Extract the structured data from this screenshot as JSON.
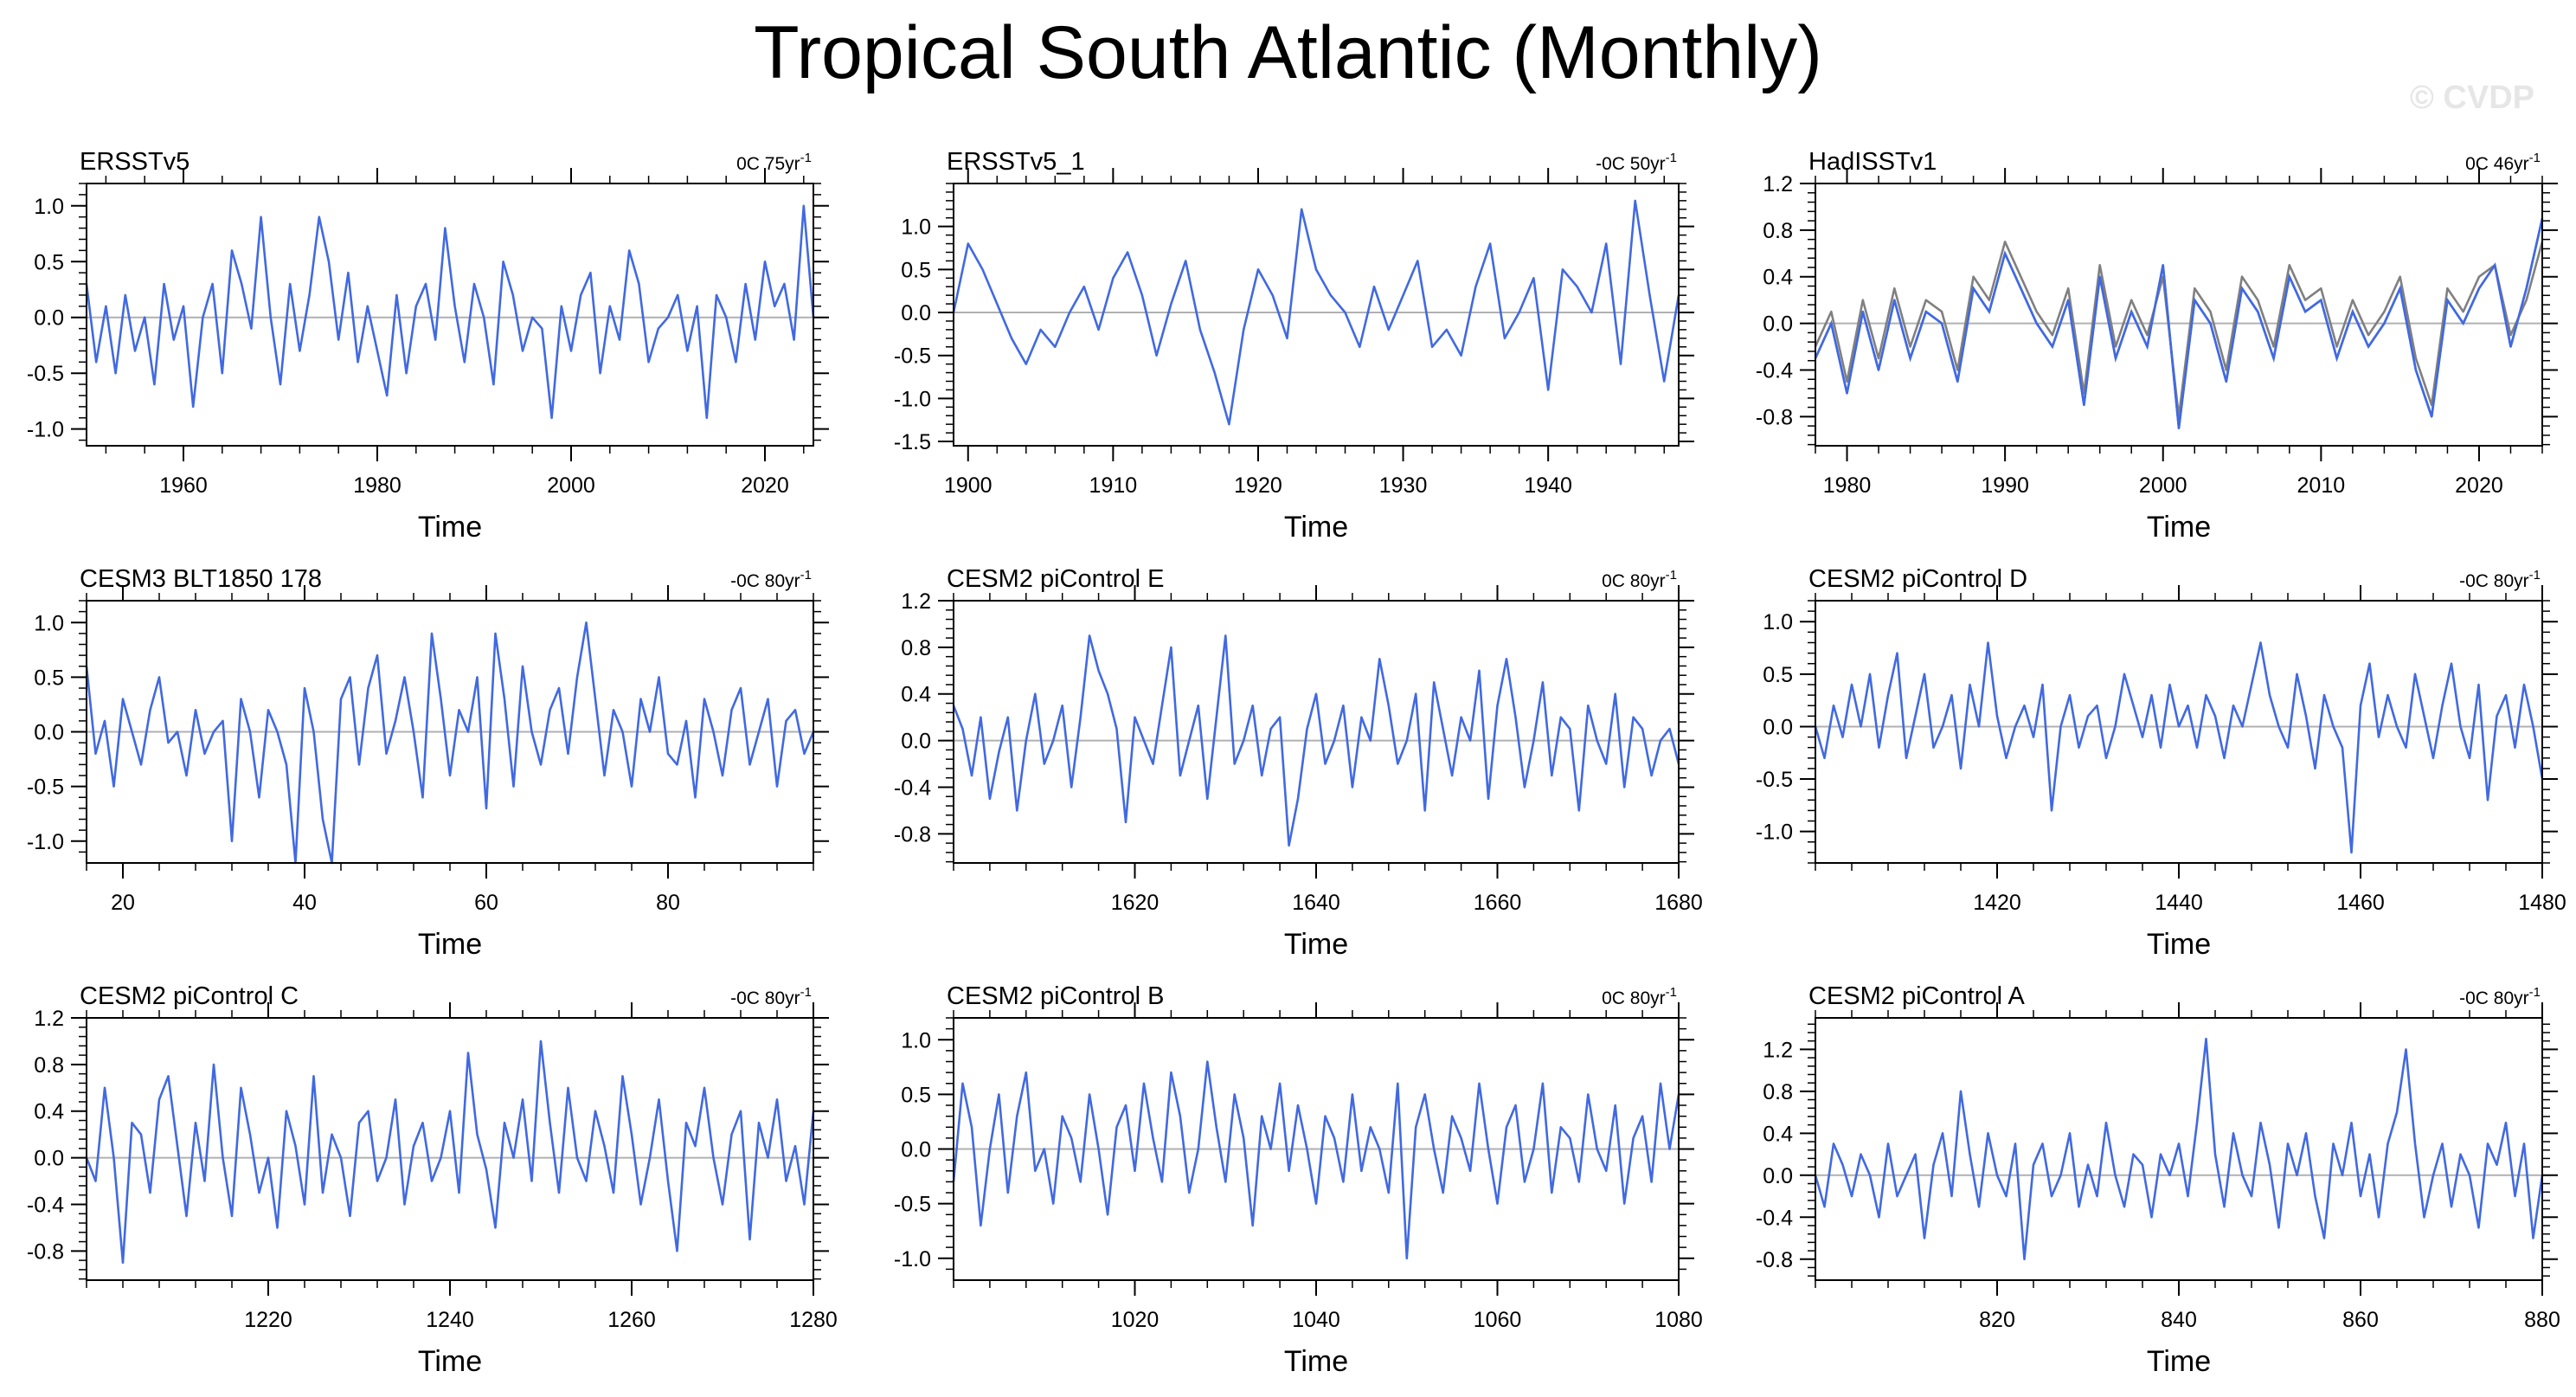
{
  "title": "Tropical South Atlantic (Monthly)",
  "copyright": "© CVDP",
  "colors": {
    "series": "#4169e1",
    "obs_overlay": "#808080",
    "zero_line": "#b0b0b0",
    "axis": "#000000"
  },
  "chart_data": [
    {
      "type": "line",
      "title": "ERSSTv5",
      "trend_prefix": "0C 75yr",
      "trend_sup": "-1",
      "xlabel": "Time",
      "ylabel": "",
      "xlim": [
        1950,
        2025
      ],
      "ylim": [
        -1.15,
        1.2
      ],
      "xticks": [
        1960,
        1980,
        2000,
        2020
      ],
      "xticklabels": [
        "1960",
        "1980",
        "2000",
        "2020"
      ],
      "yticks": [
        -1.0,
        -0.5,
        0.0,
        0.5,
        1.0
      ],
      "yticklabels": [
        "-1.0",
        "-0.5",
        "0.0",
        "0.5",
        "1.0"
      ],
      "series": [
        {
          "values": [
            0.3,
            -0.4,
            0.1,
            -0.5,
            0.2,
            -0.3,
            0.0,
            -0.6,
            0.3,
            -0.2,
            0.1,
            -0.8,
            0.0,
            0.3,
            -0.5,
            0.6,
            0.3,
            -0.1,
            0.9,
            0.0,
            -0.6,
            0.3,
            -0.3,
            0.2,
            0.9,
            0.5,
            -0.2,
            0.4,
            -0.4,
            0.1,
            -0.3,
            -0.7,
            0.2,
            -0.5,
            0.1,
            0.3,
            -0.2,
            0.8,
            0.1,
            -0.4,
            0.3,
            0.0,
            -0.6,
            0.5,
            0.2,
            -0.3,
            0.0,
            -0.1,
            -0.9,
            0.1,
            -0.3,
            0.2,
            0.4,
            -0.5,
            0.1,
            -0.2,
            0.6,
            0.3,
            -0.4,
            -0.1,
            0.0,
            0.2,
            -0.3,
            0.1,
            -0.9,
            0.2,
            0.0,
            -0.4,
            0.3,
            -0.2,
            0.5,
            0.1,
            0.3,
            -0.2,
            1.0,
            0.0
          ]
        }
      ]
    },
    {
      "type": "line",
      "title": "ERSSTv5_1",
      "trend_prefix": "-0C 50yr",
      "trend_sup": "-1",
      "xlabel": "Time",
      "ylabel": "",
      "xlim": [
        1899,
        1949
      ],
      "ylim": [
        -1.55,
        1.5
      ],
      "xticks": [
        1900,
        1910,
        1920,
        1930,
        1940
      ],
      "xticklabels": [
        "1900",
        "1910",
        "1920",
        "1930",
        "1940"
      ],
      "yticks": [
        -1.5,
        -1.0,
        -0.5,
        0.0,
        0.5,
        1.0
      ],
      "yticklabels": [
        "-1.5",
        "-1.0",
        "-0.5",
        "0.0",
        "0.5",
        "1.0"
      ],
      "series": [
        {
          "values": [
            0.0,
            0.8,
            0.5,
            0.1,
            -0.3,
            -0.6,
            -0.2,
            -0.4,
            0.0,
            0.3,
            -0.2,
            0.4,
            0.7,
            0.2,
            -0.5,
            0.1,
            0.6,
            -0.2,
            -0.7,
            -1.3,
            -0.2,
            0.5,
            0.2,
            -0.3,
            1.2,
            0.5,
            0.2,
            0.0,
            -0.4,
            0.3,
            -0.2,
            0.2,
            0.6,
            -0.4,
            -0.2,
            -0.5,
            0.3,
            0.8,
            -0.3,
            0.0,
            0.4,
            -0.9,
            0.5,
            0.3,
            0.0,
            0.8,
            -0.6,
            1.3,
            0.2,
            -0.8,
            0.2
          ]
        }
      ]
    },
    {
      "type": "line",
      "title": "HadISSTv1",
      "trend_prefix": "0C 46yr",
      "trend_sup": "-1",
      "xlabel": "Time",
      "ylabel": "",
      "xlim": [
        1978,
        2024
      ],
      "ylim": [
        -1.05,
        1.2
      ],
      "xticks": [
        1980,
        1990,
        2000,
        2010,
        2020
      ],
      "xticklabels": [
        "1980",
        "1990",
        "2000",
        "2010",
        "2020"
      ],
      "yticks": [
        -0.8,
        -0.4,
        0.0,
        0.4,
        0.8,
        1.2
      ],
      "yticklabels": [
        "-0.8",
        "-0.4",
        "0.0",
        "0.4",
        "0.8",
        "1.2"
      ],
      "series": [
        {
          "values": [
            -0.3,
            0.0,
            -0.6,
            0.1,
            -0.4,
            0.2,
            -0.3,
            0.1,
            0.0,
            -0.5,
            0.3,
            0.1,
            0.6,
            0.3,
            0.0,
            -0.2,
            0.2,
            -0.7,
            0.4,
            -0.3,
            0.1,
            -0.2,
            0.5,
            -0.9,
            0.2,
            0.0,
            -0.5,
            0.3,
            0.1,
            -0.3,
            0.4,
            0.1,
            0.2,
            -0.3,
            0.1,
            -0.2,
            0.0,
            0.3,
            -0.4,
            -0.8,
            0.2,
            0.0,
            0.3,
            0.5,
            -0.2,
            0.3,
            0.9
          ]
        },
        {
          "values": [
            -0.2,
            0.1,
            -0.5,
            0.2,
            -0.3,
            0.3,
            -0.2,
            0.2,
            0.1,
            -0.4,
            0.4,
            0.2,
            0.7,
            0.4,
            0.1,
            -0.1,
            0.3,
            -0.6,
            0.5,
            -0.2,
            0.2,
            -0.1,
            0.4,
            -0.8,
            0.3,
            0.1,
            -0.4,
            0.4,
            0.2,
            -0.2,
            0.5,
            0.2,
            0.3,
            -0.2,
            0.2,
            -0.1,
            0.1,
            0.4,
            -0.3,
            -0.7,
            0.3,
            0.1,
            0.4,
            0.5,
            -0.1,
            0.2,
            0.7
          ]
        }
      ]
    },
    {
      "type": "line",
      "title": "CESM3 BLT1850 178",
      "trend_prefix": "-0C 80yr",
      "trend_sup": "-1",
      "xlabel": "Time",
      "ylabel": "",
      "xlim": [
        16,
        96
      ],
      "ylim": [
        -1.2,
        1.2
      ],
      "xticks": [
        20,
        40,
        60,
        80
      ],
      "xticklabels": [
        "20",
        "40",
        "60",
        "80"
      ],
      "yticks": [
        -1.0,
        -0.5,
        0.0,
        0.5,
        1.0
      ],
      "yticklabels": [
        "-1.0",
        "-0.5",
        "0.0",
        "0.5",
        "1.0"
      ],
      "series": [
        {
          "values": [
            0.6,
            -0.2,
            0.1,
            -0.5,
            0.3,
            0.0,
            -0.3,
            0.2,
            0.5,
            -0.1,
            0.0,
            -0.4,
            0.2,
            -0.2,
            0.0,
            0.1,
            -1.0,
            0.3,
            0.0,
            -0.6,
            0.2,
            0.0,
            -0.3,
            -1.2,
            0.4,
            0.0,
            -0.8,
            -1.2,
            0.3,
            0.5,
            -0.3,
            0.4,
            0.7,
            -0.2,
            0.1,
            0.5,
            0.0,
            -0.6,
            0.9,
            0.3,
            -0.4,
            0.2,
            0.0,
            0.5,
            -0.7,
            0.9,
            0.3,
            -0.5,
            0.6,
            0.0,
            -0.3,
            0.2,
            0.4,
            -0.2,
            0.5,
            1.0,
            0.3,
            -0.4,
            0.2,
            0.0,
            -0.5,
            0.3,
            0.0,
            0.5,
            -0.2,
            -0.3,
            0.1,
            -0.6,
            0.3,
            0.0,
            -0.4,
            0.2,
            0.4,
            -0.3,
            0.0,
            0.3,
            -0.5,
            0.1,
            0.2,
            -0.2,
            0.0
          ]
        }
      ]
    },
    {
      "type": "line",
      "title": "CESM2 piControl E",
      "trend_prefix": "0C 80yr",
      "trend_sup": "-1",
      "xlabel": "Time",
      "ylabel": "",
      "xlim": [
        1600,
        1680
      ],
      "ylim": [
        -1.05,
        1.2
      ],
      "xticks": [
        1620,
        1640,
        1660,
        1680
      ],
      "xticklabels": [
        "1620",
        "1640",
        "1660",
        "1680"
      ],
      "yticks": [
        -0.8,
        -0.4,
        0.0,
        0.4,
        0.8,
        1.2
      ],
      "yticklabels": [
        "-0.8",
        "-0.4",
        "0.0",
        "0.4",
        "0.8",
        "1.2"
      ],
      "series": [
        {
          "values": [
            0.3,
            0.1,
            -0.3,
            0.2,
            -0.5,
            -0.1,
            0.2,
            -0.6,
            0.0,
            0.4,
            -0.2,
            0.0,
            0.3,
            -0.4,
            0.2,
            0.9,
            0.6,
            0.4,
            0.1,
            -0.7,
            0.2,
            0.0,
            -0.2,
            0.3,
            0.8,
            -0.3,
            0.0,
            0.3,
            -0.5,
            0.2,
            0.9,
            -0.2,
            0.0,
            0.3,
            -0.3,
            0.1,
            0.2,
            -0.9,
            -0.5,
            0.1,
            0.4,
            -0.2,
            0.0,
            0.3,
            -0.4,
            0.2,
            0.0,
            0.7,
            0.3,
            -0.2,
            0.0,
            0.4,
            -0.6,
            0.5,
            0.1,
            -0.3,
            0.2,
            0.0,
            0.6,
            -0.5,
            0.3,
            0.7,
            0.2,
            -0.4,
            0.0,
            0.5,
            -0.3,
            0.2,
            0.1,
            -0.6,
            0.3,
            0.0,
            -0.2,
            0.4,
            -0.4,
            0.2,
            0.1,
            -0.3,
            0.0,
            0.1,
            -0.2
          ]
        }
      ]
    },
    {
      "type": "line",
      "title": "CESM2 piControl D",
      "trend_prefix": "-0C 80yr",
      "trend_sup": "-1",
      "xlabel": "Time",
      "ylabel": "",
      "xlim": [
        1400,
        1480
      ],
      "ylim": [
        -1.3,
        1.2
      ],
      "xticks": [
        1420,
        1440,
        1460,
        1480
      ],
      "xticklabels": [
        "1420",
        "1440",
        "1460",
        "1480"
      ],
      "yticks": [
        -1.0,
        -0.5,
        0.0,
        0.5,
        1.0
      ],
      "yticklabels": [
        "-1.0",
        "-0.5",
        "0.0",
        "0.5",
        "1.0"
      ],
      "series": [
        {
          "values": [
            0.0,
            -0.3,
            0.2,
            -0.1,
            0.4,
            0.0,
            0.5,
            -0.2,
            0.3,
            0.7,
            -0.3,
            0.1,
            0.5,
            -0.2,
            0.0,
            0.3,
            -0.4,
            0.4,
            0.0,
            0.8,
            0.1,
            -0.3,
            0.0,
            0.2,
            -0.1,
            0.4,
            -0.8,
            0.0,
            0.3,
            -0.2,
            0.1,
            0.2,
            -0.3,
            0.0,
            0.5,
            0.2,
            -0.1,
            0.3,
            -0.2,
            0.4,
            0.0,
            0.2,
            -0.2,
            0.3,
            0.1,
            -0.3,
            0.2,
            0.0,
            0.4,
            0.8,
            0.3,
            0.0,
            -0.2,
            0.5,
            0.1,
            -0.4,
            0.3,
            0.0,
            -0.2,
            -1.2,
            0.2,
            0.6,
            -0.1,
            0.3,
            0.0,
            -0.2,
            0.5,
            0.1,
            -0.3,
            0.2,
            0.6,
            0.0,
            -0.3,
            0.4,
            -0.7,
            0.1,
            0.3,
            -0.2,
            0.4,
            0.0,
            -0.5
          ]
        }
      ]
    },
    {
      "type": "line",
      "title": "CESM2 piControl C",
      "trend_prefix": "-0C 80yr",
      "trend_sup": "-1",
      "xlabel": "Time",
      "ylabel": "",
      "xlim": [
        1200,
        1280
      ],
      "ylim": [
        -1.05,
        1.2
      ],
      "xticks": [
        1220,
        1240,
        1260,
        1280
      ],
      "xticklabels": [
        "1220",
        "1240",
        "1260",
        "1280"
      ],
      "yticks": [
        -0.8,
        -0.4,
        0.0,
        0.4,
        0.8,
        1.2
      ],
      "yticklabels": [
        "-0.8",
        "-0.4",
        "0.0",
        "0.4",
        "0.8",
        "1.2"
      ],
      "series": [
        {
          "values": [
            0.0,
            -0.2,
            0.6,
            0.0,
            -0.9,
            0.3,
            0.2,
            -0.3,
            0.5,
            0.7,
            0.1,
            -0.5,
            0.3,
            -0.2,
            0.8,
            0.0,
            -0.5,
            0.6,
            0.2,
            -0.3,
            0.0,
            -0.6,
            0.4,
            0.1,
            -0.4,
            0.7,
            -0.3,
            0.2,
            0.0,
            -0.5,
            0.3,
            0.4,
            -0.2,
            0.0,
            0.5,
            -0.4,
            0.1,
            0.3,
            -0.2,
            0.0,
            0.4,
            -0.3,
            0.9,
            0.2,
            -0.1,
            -0.6,
            0.3,
            0.0,
            0.5,
            -0.2,
            1.0,
            0.3,
            -0.3,
            0.6,
            0.0,
            -0.2,
            0.4,
            0.1,
            -0.3,
            0.7,
            0.2,
            -0.4,
            0.0,
            0.5,
            -0.2,
            -0.8,
            0.3,
            0.1,
            0.6,
            0.0,
            -0.4,
            0.2,
            0.4,
            -0.7,
            0.3,
            0.0,
            0.5,
            -0.2,
            0.1,
            -0.4,
            0.4
          ]
        }
      ]
    },
    {
      "type": "line",
      "title": "CESM2 piControl B",
      "trend_prefix": "0C 80yr",
      "trend_sup": "-1",
      "xlabel": "Time",
      "ylabel": "",
      "xlim": [
        1000,
        1080
      ],
      "ylim": [
        -1.2,
        1.2
      ],
      "xticks": [
        1020,
        1040,
        1060,
        1080
      ],
      "xticklabels": [
        "1020",
        "1040",
        "1060",
        "1080"
      ],
      "yticks": [
        -1.0,
        -0.5,
        0.0,
        0.5,
        1.0
      ],
      "yticklabels": [
        "-1.0",
        "-0.5",
        "0.0",
        "0.5",
        "1.0"
      ],
      "series": [
        {
          "values": [
            -0.3,
            0.6,
            0.2,
            -0.7,
            0.0,
            0.5,
            -0.4,
            0.3,
            0.7,
            -0.2,
            0.0,
            -0.5,
            0.3,
            0.1,
            -0.3,
            0.5,
            0.0,
            -0.6,
            0.2,
            0.4,
            -0.2,
            0.6,
            0.1,
            -0.3,
            0.7,
            0.3,
            -0.4,
            0.0,
            0.8,
            0.2,
            -0.3,
            0.5,
            0.1,
            -0.7,
            0.3,
            0.0,
            0.6,
            -0.2,
            0.4,
            0.0,
            -0.5,
            0.3,
            0.1,
            -0.3,
            0.5,
            -0.2,
            0.2,
            0.0,
            -0.4,
            0.6,
            -1.0,
            0.2,
            0.5,
            0.0,
            -0.4,
            0.3,
            0.1,
            -0.2,
            0.6,
            0.0,
            -0.5,
            0.2,
            0.4,
            -0.3,
            0.0,
            0.6,
            -0.4,
            0.2,
            0.1,
            -0.3,
            0.5,
            0.0,
            -0.2,
            0.4,
            -0.5,
            0.1,
            0.3,
            -0.3,
            0.6,
            0.0,
            0.5
          ]
        }
      ]
    },
    {
      "type": "line",
      "title": "CESM2 piControl A",
      "trend_prefix": "-0C 80yr",
      "trend_sup": "-1",
      "xlabel": "Time",
      "ylabel": "",
      "xlim": [
        800,
        880
      ],
      "ylim": [
        -1.0,
        1.5
      ],
      "xticks": [
        820,
        840,
        860,
        880
      ],
      "xticklabels": [
        "820",
        "840",
        "860",
        "880"
      ],
      "yticks": [
        -0.8,
        -0.4,
        0.0,
        0.4,
        0.8,
        1.2
      ],
      "yticklabels": [
        "-0.8",
        "-0.4",
        "0.0",
        "0.4",
        "0.8",
        "1.2"
      ],
      "series": [
        {
          "values": [
            0.0,
            -0.3,
            0.3,
            0.1,
            -0.2,
            0.2,
            0.0,
            -0.4,
            0.3,
            -0.2,
            0.0,
            0.2,
            -0.6,
            0.1,
            0.4,
            -0.2,
            0.8,
            0.2,
            -0.3,
            0.4,
            0.0,
            -0.2,
            0.3,
            -0.8,
            0.1,
            0.3,
            -0.2,
            0.0,
            0.4,
            -0.3,
            0.1,
            -0.2,
            0.5,
            0.0,
            -0.3,
            0.2,
            0.1,
            -0.4,
            0.2,
            0.0,
            0.3,
            -0.2,
            0.5,
            1.3,
            0.2,
            -0.3,
            0.4,
            0.0,
            -0.2,
            0.5,
            0.1,
            -0.5,
            0.3,
            0.0,
            0.4,
            -0.2,
            -0.6,
            0.3,
            0.0,
            0.5,
            -0.2,
            0.2,
            -0.4,
            0.3,
            0.6,
            1.2,
            0.3,
            -0.4,
            0.0,
            0.3,
            -0.3,
            0.2,
            0.0,
            -0.5,
            0.3,
            0.1,
            0.5,
            -0.2,
            0.3,
            -0.6,
            0.0
          ]
        }
      ]
    }
  ]
}
